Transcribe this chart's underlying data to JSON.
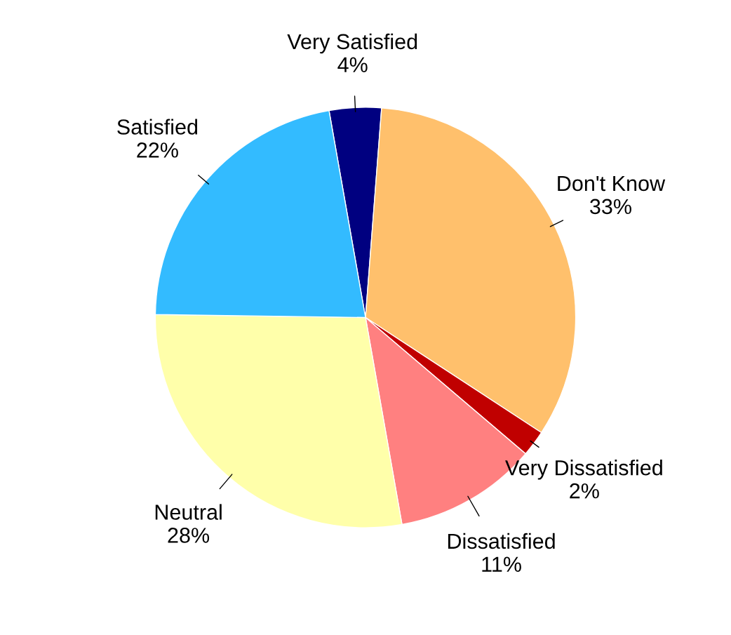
{
  "chart_data": {
    "type": "pie",
    "categories": [
      "Very Satisfied",
      "Don't Know",
      "Very Dissatisfied",
      "Dissatisfied",
      "Neutral",
      "Satisfied"
    ],
    "values": [
      4,
      33,
      2,
      11,
      28,
      22
    ],
    "value_labels": [
      "4%",
      "33%",
      "2%",
      "11%",
      "28%",
      "22%"
    ],
    "colors": [
      "#000080",
      "#ffc06c",
      "#c00000",
      "#ff8080",
      "#ffffaa",
      "#33bbff"
    ],
    "legend": false
  }
}
